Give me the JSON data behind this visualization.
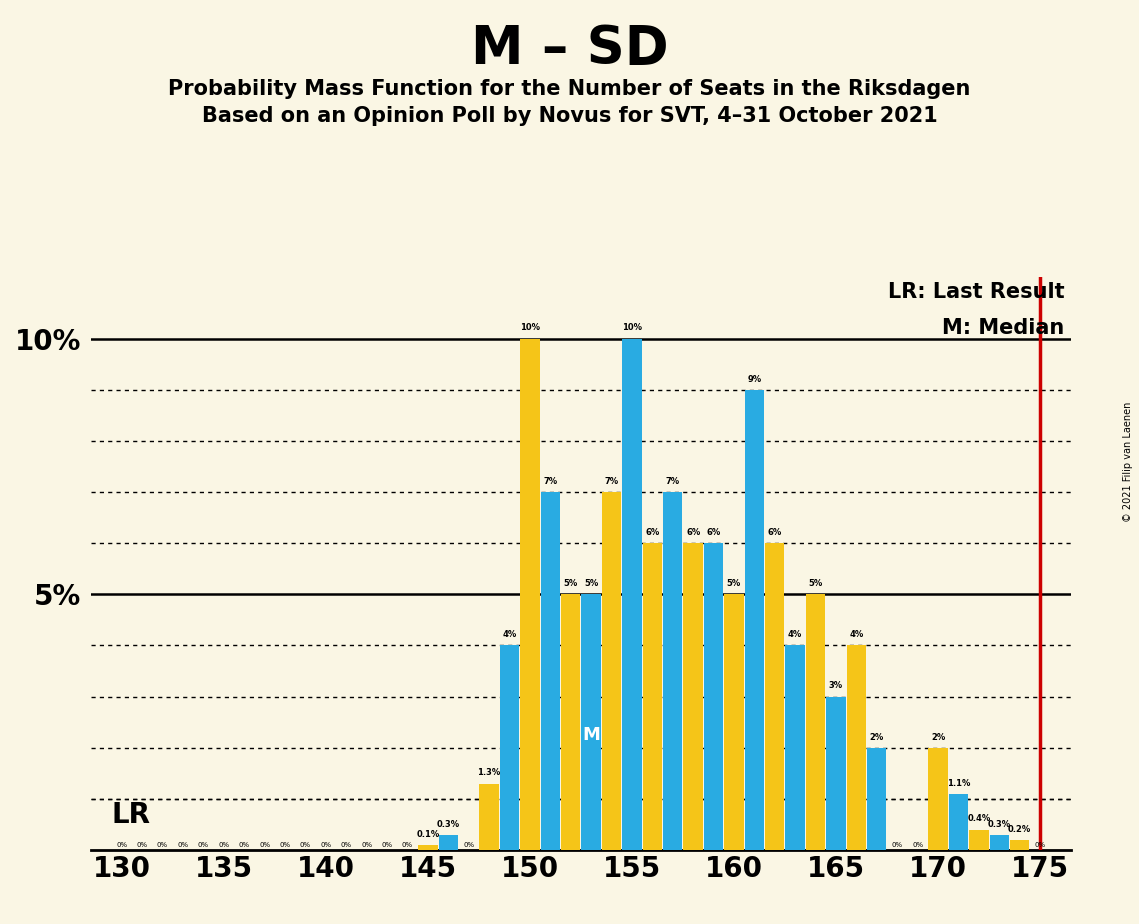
{
  "title": "M – SD",
  "subtitle1": "Probability Mass Function for the Number of Seats in the Riksdagen",
  "subtitle2": "Based on an Opinion Poll by Novus for SVT, 4–31 October 2021",
  "copyright": "© 2021 Filip van Laenen",
  "legend_lr": "LR: Last Result",
  "legend_m": "M: Median",
  "background_color": "#faf6e4",
  "bar_color_blue": "#29abe2",
  "bar_color_gold": "#f5c518",
  "lr_color": "#cc0000",
  "lr_value": 175,
  "median_seat": 153,
  "lr_dotted_y": 1.0,
  "seats": [
    130,
    131,
    132,
    133,
    134,
    135,
    136,
    137,
    138,
    139,
    140,
    141,
    142,
    143,
    144,
    145,
    146,
    147,
    148,
    149,
    150,
    151,
    152,
    153,
    154,
    155,
    156,
    157,
    158,
    159,
    160,
    161,
    162,
    163,
    164,
    165,
    166,
    167,
    168,
    169,
    170,
    171,
    172,
    173,
    174,
    175
  ],
  "values": [
    0.0,
    0.0,
    0.0,
    0.0,
    0.0,
    0.0,
    0.0,
    0.0,
    0.0,
    0.0,
    0.0,
    0.0,
    0.0,
    0.0,
    0.0,
    0.1,
    0.3,
    0.0,
    1.3,
    4.0,
    10.0,
    7.0,
    5.0,
    5.0,
    7.0,
    10.0,
    6.0,
    7.0,
    6.0,
    6.0,
    5.0,
    9.0,
    6.0,
    4.0,
    5.0,
    3.0,
    4.0,
    2.0,
    0.0,
    0.0,
    2.0,
    1.1,
    0.4,
    0.3,
    0.2,
    0.0
  ],
  "labels": [
    "0%",
    "0%",
    "0%",
    "0%",
    "0%",
    "0%",
    "0%",
    "0%",
    "0%",
    "0%",
    "0%",
    "0%",
    "0%",
    "0%",
    "0%",
    "0.1%",
    "0.3%",
    "0%",
    "1.3%",
    "4%",
    "10%",
    "7%",
    "5%",
    "5%",
    "7%",
    "10%",
    "6%",
    "7%",
    "6%",
    "6%",
    "5%",
    "9%",
    "6%",
    "4%",
    "5%",
    "3%",
    "4%",
    "2%",
    "0%",
    "0%",
    "2%",
    "1.1%",
    "0.4%",
    "0.3%",
    "0.2%",
    "0%"
  ],
  "colors": [
    "#29abe2",
    "#29abe2",
    "#29abe2",
    "#29abe2",
    "#29abe2",
    "#29abe2",
    "#29abe2",
    "#29abe2",
    "#29abe2",
    "#29abe2",
    "#29abe2",
    "#29abe2",
    "#29abe2",
    "#29abe2",
    "#29abe2",
    "#f5c518",
    "#29abe2",
    "#f5c518",
    "#f5c518",
    "#29abe2",
    "#f5c518",
    "#29abe2",
    "#f5c518",
    "#29abe2",
    "#f5c518",
    "#29abe2",
    "#f5c518",
    "#29abe2",
    "#f5c518",
    "#29abe2",
    "#f5c518",
    "#29abe2",
    "#f5c518",
    "#29abe2",
    "#f5c518",
    "#29abe2",
    "#f5c518",
    "#29abe2",
    "#f5c518",
    "#29abe2",
    "#f5c518",
    "#29abe2",
    "#f5c518",
    "#29abe2",
    "#f5c518",
    "#29abe2"
  ],
  "xmin": 128.5,
  "xmax": 176.5,
  "ymin": 0,
  "ymax": 11.2,
  "solid_hlines": [
    5.0,
    10.0
  ],
  "dotted_hlines": [
    1.0,
    2.0,
    3.0,
    4.0,
    6.0,
    7.0,
    8.0,
    9.0
  ],
  "xtick_positions": [
    130,
    135,
    140,
    145,
    150,
    155,
    160,
    165,
    170,
    175
  ]
}
